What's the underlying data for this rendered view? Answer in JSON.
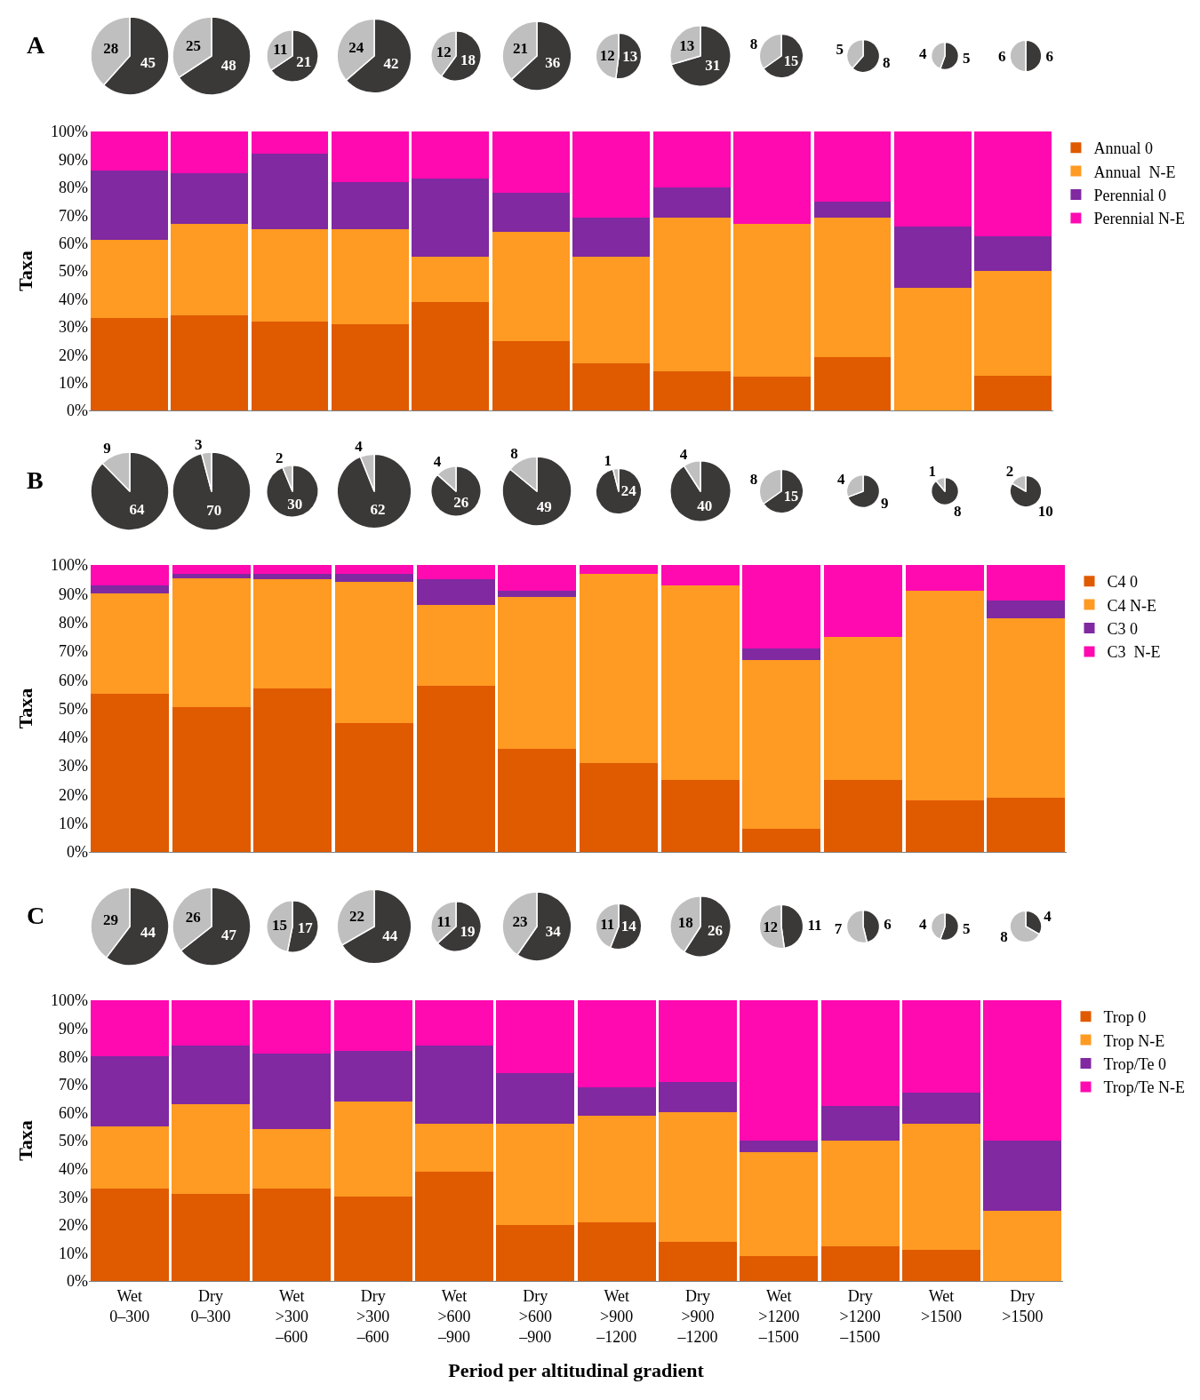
{
  "chart_data": [
    {
      "type": "pie",
      "categories": [
        null,
        null
      ],
      "values": [
        45,
        28
      ],
      "colors": [
        "#3b3838",
        "#bfbfbf"
      ],
      "data_labels": true
    },
    {
      "type": "pie",
      "categories": [
        null,
        null
      ],
      "values": [
        48,
        25
      ],
      "colors": [
        "#3b3838",
        "#bfbfbf"
      ],
      "data_labels": true
    },
    {
      "type": "pie",
      "categories": [
        null,
        null
      ],
      "values": [
        21,
        11
      ],
      "colors": [
        "#3b3838",
        "#bfbfbf"
      ],
      "data_labels": true
    },
    {
      "type": "pie",
      "categories": [
        null,
        null
      ],
      "values": [
        42,
        24
      ],
      "colors": [
        "#3b3838",
        "#bfbfbf"
      ],
      "data_labels": true
    },
    {
      "type": "pie",
      "categories": [
        null,
        null
      ],
      "values": [
        18,
        12
      ],
      "colors": [
        "#3b3838",
        "#bfbfbf"
      ],
      "data_labels": true
    },
    {
      "type": "pie",
      "categories": [
        null,
        null
      ],
      "values": [
        36,
        21
      ],
      "colors": [
        "#3b3838",
        "#bfbfbf"
      ],
      "data_labels": true
    },
    {
      "type": "pie",
      "categories": [
        null,
        null
      ],
      "values": [
        13,
        12
      ],
      "colors": [
        "#3b3838",
        "#bfbfbf"
      ],
      "data_labels": true
    },
    {
      "type": "pie",
      "categories": [
        null,
        null
      ],
      "values": [
        31,
        13
      ],
      "colors": [
        "#3b3838",
        "#bfbfbf"
      ],
      "data_labels": true
    },
    {
      "type": "pie",
      "categories": [
        null,
        null
      ],
      "values": [
        15,
        8
      ],
      "colors": [
        "#3b3838",
        "#bfbfbf"
      ],
      "data_labels": true
    },
    {
      "type": "pie",
      "categories": [
        null,
        null
      ],
      "values": [
        8,
        5
      ],
      "colors": [
        "#3b3838",
        "#bfbfbf"
      ],
      "data_labels": true
    },
    {
      "type": "pie",
      "categories": [
        null,
        null
      ],
      "values": [
        5,
        4
      ],
      "colors": [
        "#3b3838",
        "#bfbfbf"
      ],
      "data_labels": true
    },
    {
      "type": "pie",
      "categories": [
        null,
        null
      ],
      "values": [
        6,
        6
      ],
      "colors": [
        "#3b3838",
        "#bfbfbf"
      ],
      "data_labels": true
    },
    {
      "type": "bar",
      "title": "A",
      "ylabel": "Taxa",
      "stacked": true,
      "legend": "top right",
      "tick_labels": "y",
      "ylim": [
        0,
        100
      ],
      "yticks": [
        {
          "value": 0,
          "label": "0%"
        },
        {
          "value": 10,
          "label": "10%"
        },
        {
          "value": 20,
          "label": "20%"
        },
        {
          "value": 30,
          "label": "30%"
        },
        {
          "value": 40,
          "label": "40%"
        },
        {
          "value": 50,
          "label": "50%"
        },
        {
          "value": 60,
          "label": "60%"
        },
        {
          "value": 70,
          "label": "70%"
        },
        {
          "value": 80,
          "label": "80%"
        },
        {
          "value": 90,
          "label": "90%"
        },
        {
          "value": 100,
          "label": "100%"
        }
      ],
      "categories": [
        null,
        null,
        null,
        null,
        null,
        null,
        null,
        null,
        null,
        null,
        null,
        null
      ],
      "series": [
        {
          "name": "Annual 0",
          "color": "#e05a00",
          "values": [
            33,
            34,
            32,
            31,
            39,
            25,
            17,
            14,
            12,
            19,
            0,
            12.5
          ]
        },
        {
          "name": "Annual  N-E",
          "color": "#ff9a22",
          "values": [
            28,
            33,
            33,
            34,
            16,
            39,
            38,
            55,
            55,
            50,
            44,
            37.5
          ]
        },
        {
          "name": "Perennial 0",
          "color": "#8029a0",
          "values": [
            25,
            18,
            27,
            17,
            28,
            14,
            14,
            11,
            0,
            6,
            22,
            12.5
          ]
        },
        {
          "name": "Perennial N-E",
          "color": "#ff0ab0",
          "values": [
            14,
            15,
            8,
            18,
            17,
            22,
            31,
            20,
            33,
            25,
            34,
            37.5
          ]
        }
      ]
    },
    {
      "type": "pie",
      "categories": [
        null,
        null
      ],
      "values": [
        64,
        9
      ],
      "colors": [
        "#3b3838",
        "#bfbfbf"
      ],
      "data_labels": true
    },
    {
      "type": "pie",
      "categories": [
        null,
        null
      ],
      "values": [
        70,
        3
      ],
      "colors": [
        "#3b3838",
        "#bfbfbf"
      ],
      "data_labels": true
    },
    {
      "type": "pie",
      "categories": [
        null,
        null
      ],
      "values": [
        30,
        2
      ],
      "colors": [
        "#3b3838",
        "#bfbfbf"
      ],
      "data_labels": true
    },
    {
      "type": "pie",
      "categories": [
        null,
        null
      ],
      "values": [
        62,
        4
      ],
      "colors": [
        "#3b3838",
        "#bfbfbf"
      ],
      "data_labels": true
    },
    {
      "type": "pie",
      "categories": [
        null,
        null
      ],
      "values": [
        26,
        4
      ],
      "colors": [
        "#3b3838",
        "#bfbfbf"
      ],
      "data_labels": true
    },
    {
      "type": "pie",
      "categories": [
        null,
        null
      ],
      "values": [
        49,
        8
      ],
      "colors": [
        "#3b3838",
        "#bfbfbf"
      ],
      "data_labels": true
    },
    {
      "type": "pie",
      "categories": [
        null,
        null
      ],
      "values": [
        24,
        1
      ],
      "colors": [
        "#3b3838",
        "#bfbfbf"
      ],
      "data_labels": true
    },
    {
      "type": "pie",
      "categories": [
        null,
        null
      ],
      "values": [
        40,
        4
      ],
      "colors": [
        "#3b3838",
        "#bfbfbf"
      ],
      "data_labels": true
    },
    {
      "type": "pie",
      "categories": [
        null,
        null
      ],
      "values": [
        15,
        8
      ],
      "colors": [
        "#3b3838",
        "#bfbfbf"
      ],
      "data_labels": true
    },
    {
      "type": "pie",
      "categories": [
        null,
        null
      ],
      "values": [
        9,
        4
      ],
      "colors": [
        "#3b3838",
        "#bfbfbf"
      ],
      "data_labels": true
    },
    {
      "type": "pie",
      "categories": [
        null,
        null
      ],
      "values": [
        8,
        1
      ],
      "colors": [
        "#3b3838",
        "#bfbfbf"
      ],
      "data_labels": true
    },
    {
      "type": "pie",
      "categories": [
        null,
        null
      ],
      "values": [
        10,
        2
      ],
      "colors": [
        "#3b3838",
        "#bfbfbf"
      ],
      "data_labels": true
    },
    {
      "type": "bar",
      "title": "B",
      "ylabel": "Taxa",
      "stacked": true,
      "legend": "top right",
      "tick_labels": "y",
      "ylim": [
        0,
        100
      ],
      "yticks": [
        {
          "value": 0,
          "label": "0%"
        },
        {
          "value": 10,
          "label": "10%"
        },
        {
          "value": 20,
          "label": "20%"
        },
        {
          "value": 30,
          "label": "30%"
        },
        {
          "value": 40,
          "label": "40%"
        },
        {
          "value": 50,
          "label": "50%"
        },
        {
          "value": 60,
          "label": "60%"
        },
        {
          "value": 70,
          "label": "70%"
        },
        {
          "value": 80,
          "label": "80%"
        },
        {
          "value": 90,
          "label": "90%"
        },
        {
          "value": 100,
          "label": "100%"
        }
      ],
      "categories": [
        null,
        null,
        null,
        null,
        null,
        null,
        null,
        null,
        null,
        null,
        null,
        null
      ],
      "series": [
        {
          "name": "C4 0",
          "color": "#e05a00",
          "values": [
            55,
            50.5,
            57,
            45,
            58,
            36,
            31,
            25,
            8,
            25,
            18,
            19
          ]
        },
        {
          "name": "C4 N-E",
          "color": "#ff9a22",
          "values": [
            35,
            45,
            38,
            49,
            28,
            53,
            66,
            68,
            59,
            50,
            73,
            62.5
          ]
        },
        {
          "name": "C3 0",
          "color": "#8029a0",
          "values": [
            3,
            1.5,
            2,
            3,
            9,
            2,
            0,
            0,
            4,
            0,
            0,
            6
          ]
        },
        {
          "name": "C3  N-E",
          "color": "#ff0ab0",
          "values": [
            7,
            3,
            3,
            3,
            5,
            9,
            3,
            7,
            29,
            25,
            9,
            12.5
          ]
        }
      ]
    },
    {
      "type": "pie",
      "categories": [
        null,
        null
      ],
      "values": [
        44,
        29
      ],
      "colors": [
        "#3b3838",
        "#bfbfbf"
      ],
      "data_labels": true
    },
    {
      "type": "pie",
      "categories": [
        null,
        null
      ],
      "values": [
        47,
        26
      ],
      "colors": [
        "#3b3838",
        "#bfbfbf"
      ],
      "data_labels": true
    },
    {
      "type": "pie",
      "categories": [
        null,
        null
      ],
      "values": [
        17,
        15
      ],
      "colors": [
        "#3b3838",
        "#bfbfbf"
      ],
      "data_labels": true
    },
    {
      "type": "pie",
      "categories": [
        null,
        null
      ],
      "values": [
        44,
        22
      ],
      "colors": [
        "#3b3838",
        "#bfbfbf"
      ],
      "data_labels": true
    },
    {
      "type": "pie",
      "categories": [
        null,
        null
      ],
      "values": [
        19,
        11
      ],
      "colors": [
        "#3b3838",
        "#bfbfbf"
      ],
      "data_labels": true
    },
    {
      "type": "pie",
      "categories": [
        null,
        null
      ],
      "values": [
        34,
        23
      ],
      "colors": [
        "#3b3838",
        "#bfbfbf"
      ],
      "data_labels": true
    },
    {
      "type": "pie",
      "categories": [
        null,
        null
      ],
      "values": [
        14,
        11
      ],
      "colors": [
        "#3b3838",
        "#bfbfbf"
      ],
      "data_labels": true
    },
    {
      "type": "pie",
      "categories": [
        null,
        null
      ],
      "values": [
        26,
        18
      ],
      "colors": [
        "#3b3838",
        "#bfbfbf"
      ],
      "data_labels": true
    },
    {
      "type": "pie",
      "categories": [
        null,
        null
      ],
      "values": [
        11,
        12
      ],
      "colors": [
        "#3b3838",
        "#bfbfbf"
      ],
      "data_labels": true
    },
    {
      "type": "pie",
      "categories": [
        null,
        null
      ],
      "values": [
        6,
        7
      ],
      "colors": [
        "#3b3838",
        "#bfbfbf"
      ],
      "data_labels": true
    },
    {
      "type": "pie",
      "categories": [
        null,
        null
      ],
      "values": [
        5,
        4
      ],
      "colors": [
        "#3b3838",
        "#bfbfbf"
      ],
      "data_labels": true
    },
    {
      "type": "pie",
      "categories": [
        null,
        null
      ],
      "values": [
        4,
        8
      ],
      "colors": [
        "#3b3838",
        "#bfbfbf"
      ],
      "data_labels": true
    },
    {
      "type": "bar",
      "title": "C",
      "ylabel": "Taxa",
      "xlabel": "Period per altitudinal gradient",
      "stacked": true,
      "legend": "top right",
      "ylim": [
        0,
        100
      ],
      "yticks": [
        {
          "value": 0,
          "label": "0%"
        },
        {
          "value": 10,
          "label": "10%"
        },
        {
          "value": 20,
          "label": "20%"
        },
        {
          "value": 30,
          "label": "30%"
        },
        {
          "value": 40,
          "label": "40%"
        },
        {
          "value": 50,
          "label": "50%"
        },
        {
          "value": 60,
          "label": "60%"
        },
        {
          "value": 70,
          "label": "70%"
        },
        {
          "value": 80,
          "label": "80%"
        },
        {
          "value": 90,
          "label": "90%"
        },
        {
          "value": 100,
          "label": "100%"
        }
      ],
      "categories": [
        "Wet\n0–300",
        "Dry\n0–300",
        "Wet\n>300\n–600",
        "Dry\n>300\n–600",
        "Wet\n>600\n–900",
        "Dry\n>600\n–900",
        "Wet\n>900\n–1200",
        "Dry\n>900\n–1200",
        "Wet\n>1200\n–1500",
        "Dry\n>1200\n–1500",
        "Wet\n>1500",
        "Dry\n>1500"
      ],
      "series": [
        {
          "name": "Trop 0",
          "color": "#e05a00",
          "values": [
            33,
            31,
            33,
            30,
            39,
            20,
            21,
            14,
            9,
            12.5,
            11,
            0
          ]
        },
        {
          "name": "Trop N-E",
          "color": "#ff9a22",
          "values": [
            22,
            32,
            21,
            34,
            17,
            36,
            38,
            46,
            37,
            37.5,
            45,
            25
          ]
        },
        {
          "name": "Trop/Te 0",
          "color": "#8029a0",
          "values": [
            25,
            21,
            27,
            18,
            28,
            18,
            10,
            11,
            4,
            12.5,
            11,
            25
          ]
        },
        {
          "name": "Trop/Te N-E",
          "color": "#ff0ab0",
          "values": [
            20,
            16,
            19,
            18,
            16,
            26,
            31,
            29,
            50,
            37.5,
            33,
            50
          ]
        }
      ]
    }
  ]
}
